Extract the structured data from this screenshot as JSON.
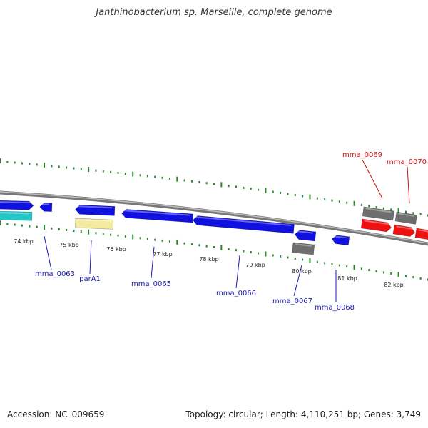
{
  "title": "Janthinobacterium sp. Marseille, complete genome",
  "footer": {
    "accession": "Accession: NC_009659",
    "info": "Topology: circular; Length: 4,110,251 bp; Genes: 3,749"
  },
  "colors": {
    "blue_gene": "#1010e0",
    "red_gene": "#ee1111",
    "gray_gene": "#6e6e6e",
    "cyan_gene": "#22c8c8",
    "yellow_gene": "#f3eaa0",
    "tick": "#2a8a2a",
    "backbone": "#888888",
    "label_blue": "#1a1ab0",
    "label_red": "#cc1111"
  },
  "ticks": [
    "74 kbp",
    "75 kbp",
    "76 kbp",
    "77 kbp",
    "78 kbp",
    "79 kbp",
    "80 kbp",
    "81 kbp",
    "82 kbp"
  ],
  "genes": [
    {
      "label": "mma_0063",
      "color": "blue"
    },
    {
      "label": "parA1",
      "color": "blue"
    },
    {
      "label": "mma_0065",
      "color": "blue"
    },
    {
      "label": "mma_0066",
      "color": "blue"
    },
    {
      "label": "mma_0067",
      "color": "blue"
    },
    {
      "label": "mma_0068",
      "color": "blue"
    },
    {
      "label": "mma_0069",
      "color": "red"
    },
    {
      "label": "mma_0070",
      "color": "red"
    }
  ]
}
